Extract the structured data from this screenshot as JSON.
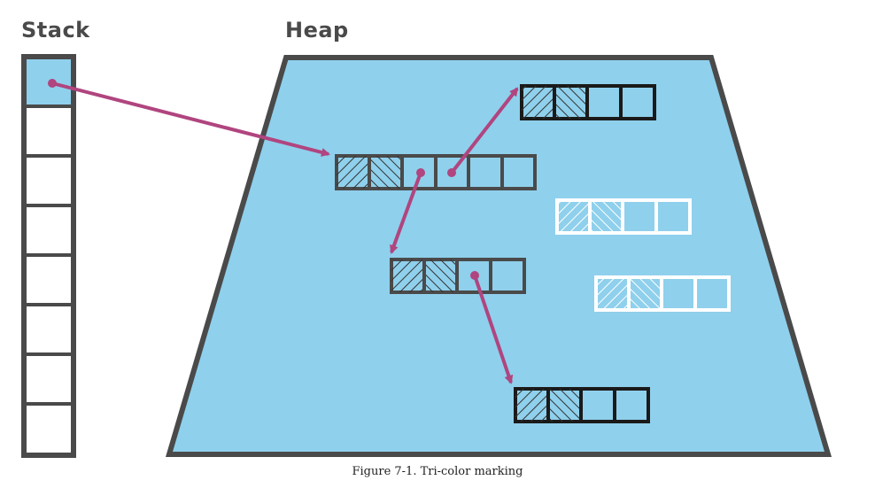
{
  "titles": {
    "stack": "Stack",
    "heap": "Heap"
  },
  "caption": "Figure 7-1. Tri-color marking",
  "colors": {
    "heap_fill": "#8fd0ec",
    "heap_border": "#4a4a4a",
    "stack_border": "#4a4a4a",
    "stack_root_fill": "#8fd0ec",
    "black_object": "#1a1a1a",
    "gray_object": "#4a4a4a",
    "white_object": "#ffffff",
    "pointer": "#b0457f"
  }
}
